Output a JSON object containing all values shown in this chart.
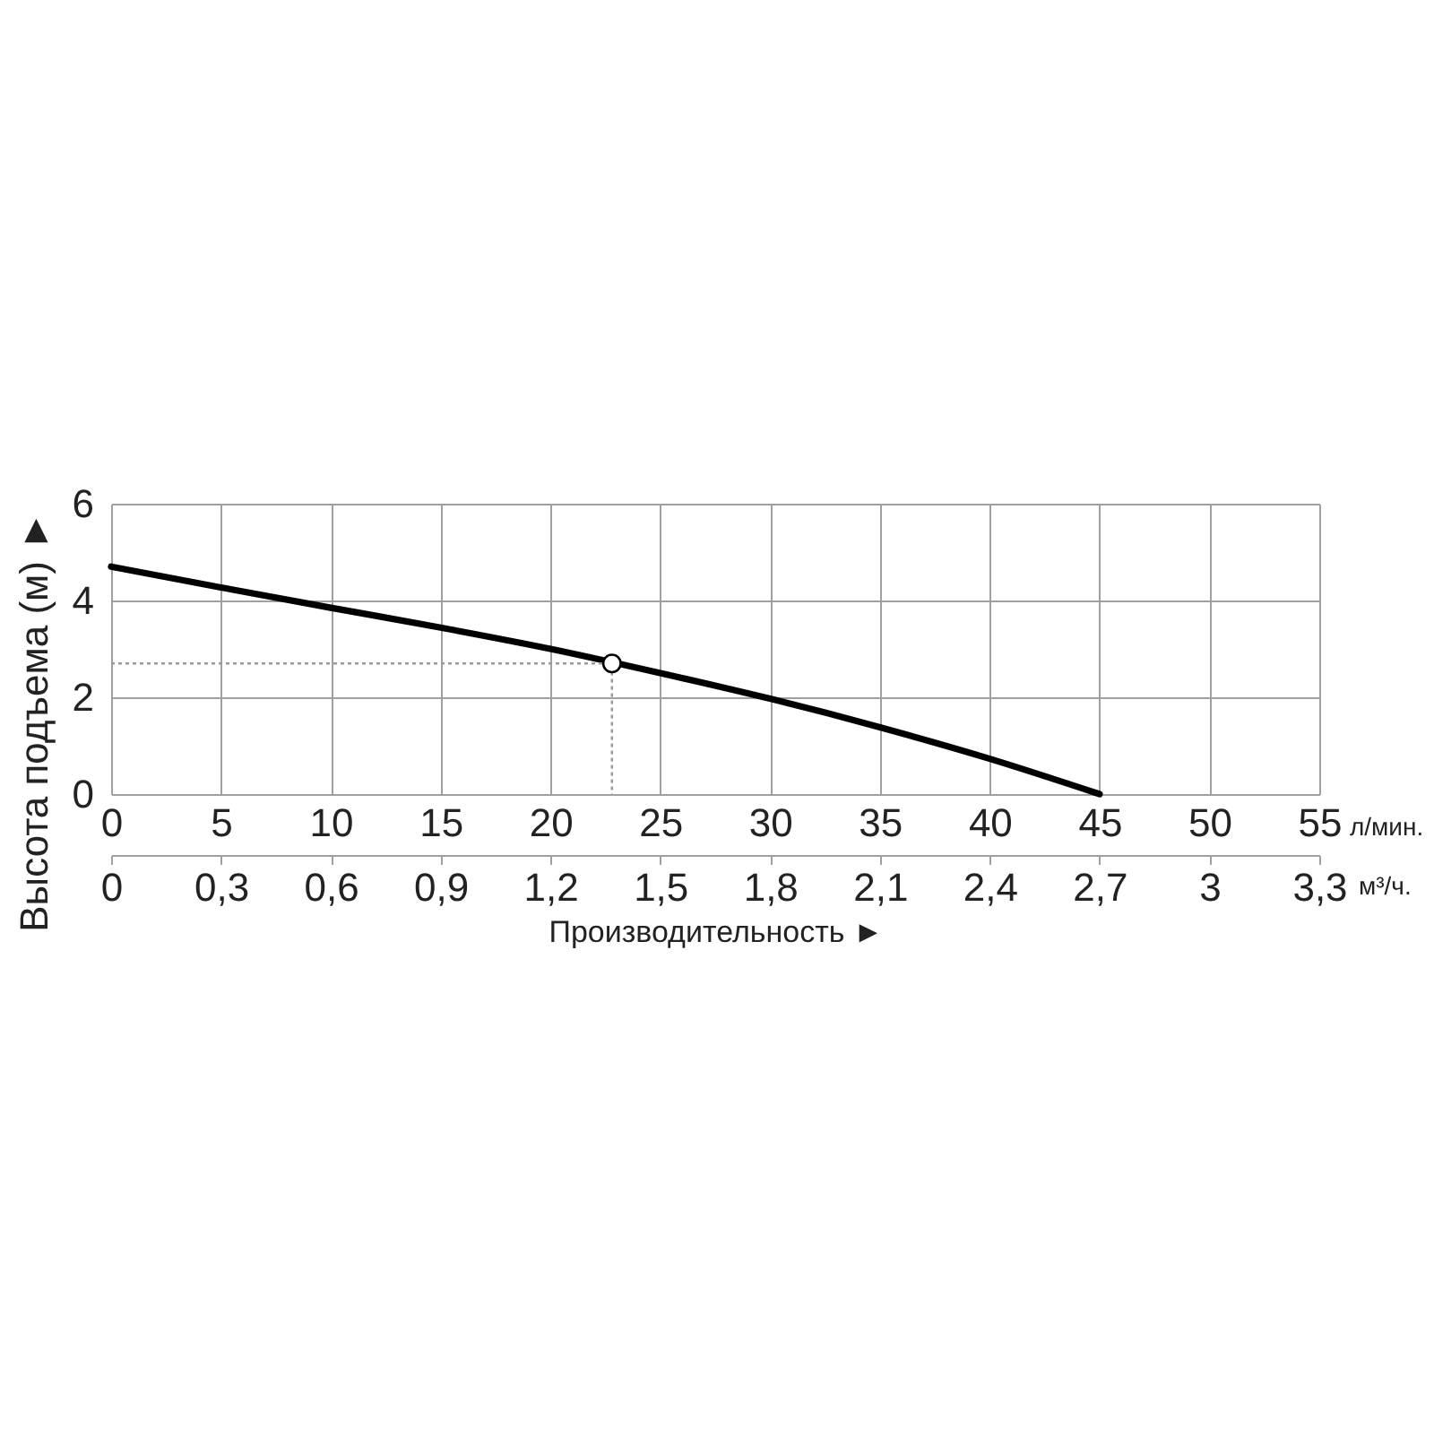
{
  "chart_data": {
    "type": "line",
    "xlabel": "Производительность ►",
    "ylabel": "Высота подъема (м) ►",
    "annotations": [
      "л/мин.",
      "м³/ч."
    ],
    "xlim": [
      0,
      55
    ],
    "xticks": [
      0,
      5,
      10,
      15,
      20,
      25,
      30,
      35,
      40,
      45,
      50,
      55
    ],
    "x2lim": [
      0,
      3.3
    ],
    "x2ticks": [
      0,
      {
        "value": 0.3,
        "label": "0,3"
      },
      {
        "value": 0.6,
        "label": "0,6"
      },
      {
        "value": 0.9,
        "label": "0,9"
      },
      {
        "value": 1.2,
        "label": "1,2"
      },
      {
        "value": 1.5,
        "label": "1,5"
      },
      {
        "value": 1.8,
        "label": "1,8"
      },
      {
        "value": 2.1,
        "label": "2,1"
      },
      {
        "value": 2.4,
        "label": "2,4"
      },
      {
        "value": 2.7,
        "label": "2,7"
      },
      3,
      {
        "value": 3.3,
        "label": "3,3"
      }
    ],
    "ylim": [
      0,
      6
    ],
    "yticks": [
      0,
      2,
      4,
      6
    ],
    "grid": true,
    "series": [
      {
        "color": "#000000",
        "line_style": "solid",
        "x": [
          0,
          5,
          10,
          15,
          20,
          25,
          30,
          35,
          40,
          45
        ],
        "values": [
          4.7,
          4.27,
          3.85,
          3.44,
          3.0,
          2.5,
          1.97,
          1.38,
          0.73,
          0
        ]
      },
      {
        "type": "line",
        "color": "#999999",
        "line_style": "dotted",
        "x": [
          0,
          22.8,
          22.8
        ],
        "values": [
          2.7,
          2.7,
          0
        ]
      },
      {
        "type": "scatter",
        "color": "#000000",
        "marker": "circle",
        "x": [
          22.8
        ],
        "values": [
          2.7
        ]
      }
    ]
  }
}
